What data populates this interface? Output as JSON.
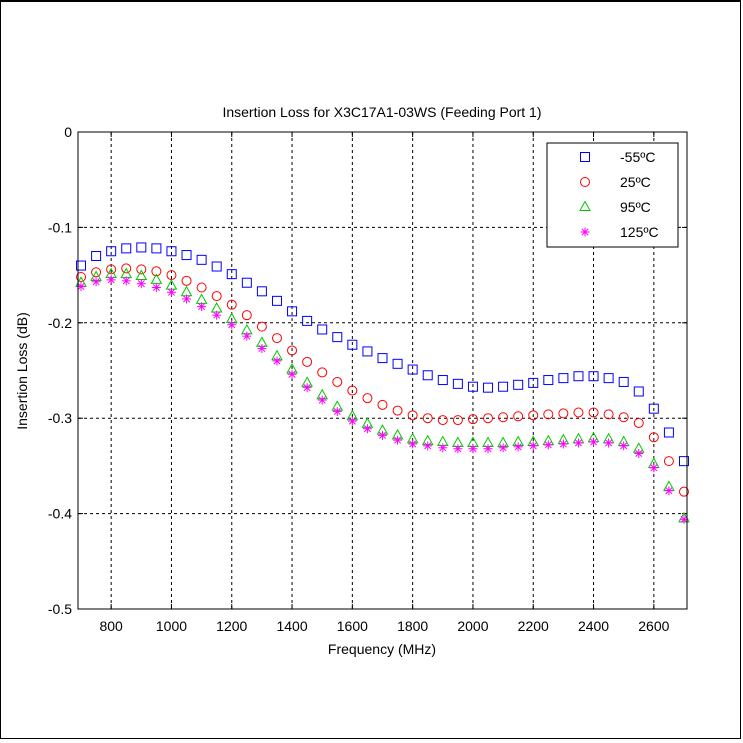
{
  "chart_data": {
    "type": "scatter",
    "title": "Insertion Loss for X3C17A1-03WS (Feeding Port 1)",
    "xlabel": "Frequency (MHz)",
    "ylabel": "Insertion Loss (dB)",
    "xlim": [
      690,
      2710
    ],
    "ylim": [
      -0.5,
      0
    ],
    "xticks": [
      800,
      1000,
      1200,
      1400,
      1600,
      1800,
      2000,
      2200,
      2400,
      2600
    ],
    "yticks": [
      0,
      -0.1,
      -0.2,
      -0.3,
      -0.4,
      -0.5
    ],
    "xtick_labels": [
      "800",
      "1000",
      "1200",
      "1400",
      "1600",
      "1800",
      "2000",
      "2200",
      "2400",
      "2600"
    ],
    "ytick_labels": [
      "0",
      "-0.1",
      "-0.2",
      "-0.3",
      "-0.4",
      "-0.5"
    ],
    "grid": true,
    "legend_position": "top-right",
    "x": [
      700,
      750,
      800,
      850,
      900,
      950,
      1000,
      1050,
      1100,
      1150,
      1200,
      1250,
      1300,
      1350,
      1400,
      1450,
      1500,
      1550,
      1600,
      1650,
      1700,
      1750,
      1800,
      1850,
      1900,
      1950,
      2000,
      2050,
      2100,
      2150,
      2200,
      2250,
      2300,
      2350,
      2400,
      2450,
      2500,
      2550,
      2600,
      2650,
      2700
    ],
    "series": [
      {
        "name": "-55ºC",
        "marker": "square",
        "color": "#0000ff",
        "values": [
          -0.14,
          -0.13,
          -0.125,
          -0.122,
          -0.121,
          -0.122,
          -0.125,
          -0.129,
          -0.134,
          -0.141,
          -0.149,
          -0.158,
          -0.167,
          -0.177,
          -0.188,
          -0.198,
          -0.207,
          -0.215,
          -0.223,
          -0.23,
          -0.237,
          -0.243,
          -0.249,
          -0.255,
          -0.26,
          -0.264,
          -0.267,
          -0.268,
          -0.267,
          -0.265,
          -0.263,
          -0.26,
          -0.258,
          -0.256,
          -0.256,
          -0.258,
          -0.262,
          -0.272,
          -0.29,
          -0.315,
          -0.345
        ]
      },
      {
        "name": "25ºC",
        "marker": "circle",
        "color": "#ff0000",
        "values": [
          -0.152,
          -0.147,
          -0.144,
          -0.143,
          -0.144,
          -0.146,
          -0.15,
          -0.156,
          -0.163,
          -0.172,
          -0.181,
          -0.192,
          -0.204,
          -0.216,
          -0.229,
          -0.241,
          -0.252,
          -0.262,
          -0.271,
          -0.279,
          -0.286,
          -0.292,
          -0.297,
          -0.3,
          -0.302,
          -0.302,
          -0.301,
          -0.3,
          -0.299,
          -0.298,
          -0.297,
          -0.296,
          -0.295,
          -0.294,
          -0.294,
          -0.296,
          -0.299,
          -0.305,
          -0.32,
          -0.345,
          -0.377
        ]
      },
      {
        "name": "95ºC",
        "marker": "triangle",
        "color": "#00c800",
        "values": [
          -0.158,
          -0.152,
          -0.149,
          -0.149,
          -0.151,
          -0.155,
          -0.161,
          -0.168,
          -0.176,
          -0.185,
          -0.196,
          -0.208,
          -0.221,
          -0.235,
          -0.249,
          -0.263,
          -0.276,
          -0.288,
          -0.298,
          -0.306,
          -0.313,
          -0.318,
          -0.322,
          -0.324,
          -0.325,
          -0.326,
          -0.326,
          -0.326,
          -0.326,
          -0.325,
          -0.325,
          -0.324,
          -0.323,
          -0.322,
          -0.321,
          -0.322,
          -0.325,
          -0.332,
          -0.348,
          -0.372,
          -0.405
        ]
      },
      {
        "name": "125ºC",
        "marker": "asterisk",
        "color": "#ff00ff",
        "values": [
          -0.162,
          -0.157,
          -0.155,
          -0.156,
          -0.159,
          -0.163,
          -0.168,
          -0.175,
          -0.183,
          -0.192,
          -0.202,
          -0.214,
          -0.227,
          -0.24,
          -0.254,
          -0.268,
          -0.281,
          -0.293,
          -0.303,
          -0.311,
          -0.318,
          -0.323,
          -0.327,
          -0.329,
          -0.331,
          -0.332,
          -0.332,
          -0.332,
          -0.331,
          -0.33,
          -0.329,
          -0.328,
          -0.327,
          -0.326,
          -0.325,
          -0.326,
          -0.329,
          -0.337,
          -0.352,
          -0.376,
          -0.406
        ]
      }
    ]
  }
}
